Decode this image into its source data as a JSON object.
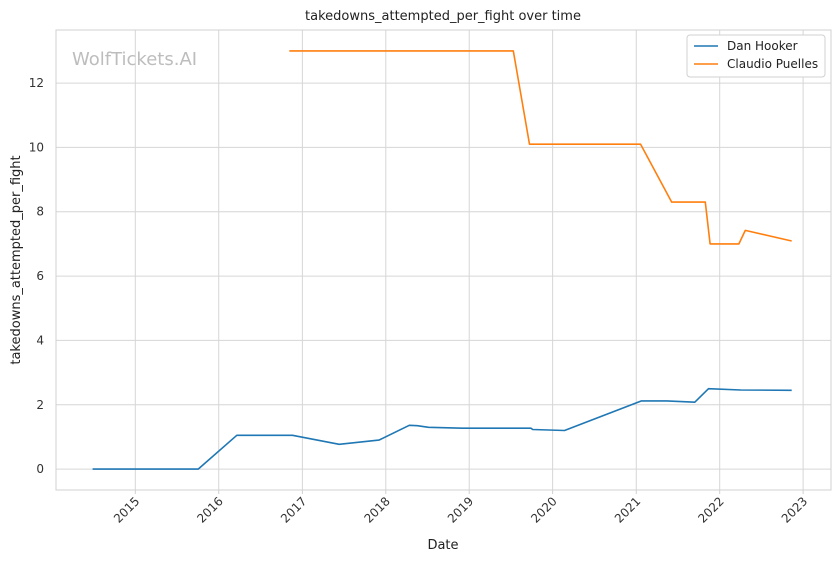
{
  "chart_data": {
    "type": "line",
    "title": "takedowns_attempted_per_fight over time",
    "xlabel": "Date",
    "ylabel": "takedowns_attempted_per_fight",
    "watermark": "WolfTickets.AI",
    "grid": true,
    "legend_position": "top-right",
    "xlim": [
      "2014-01-19",
      "2023-05-03"
    ],
    "ylim": [
      -0.65,
      13.65
    ],
    "x_ticks": [
      "2015",
      "2016",
      "2017",
      "2018",
      "2019",
      "2020",
      "2021",
      "2022",
      "2023"
    ],
    "y_ticks": [
      "0",
      "2",
      "4",
      "6",
      "8",
      "10",
      "12"
    ],
    "series": [
      {
        "name": "Dan Hooker",
        "color": "#1f77b4",
        "points": [
          [
            "2014-06-28",
            0.0
          ],
          [
            "2015-10-03",
            0.0
          ],
          [
            "2016-03-20",
            1.05
          ],
          [
            "2016-11-19",
            1.05
          ],
          [
            "2017-06-11",
            0.77
          ],
          [
            "2017-12-02",
            0.9
          ],
          [
            "2018-04-14",
            1.36
          ],
          [
            "2018-05-19",
            1.35
          ],
          [
            "2018-07-07",
            1.3
          ],
          [
            "2018-12-02",
            1.27
          ],
          [
            "2019-09-28",
            1.27
          ],
          [
            "2019-10-06",
            1.23
          ],
          [
            "2020-02-22",
            1.2
          ],
          [
            "2021-01-24",
            2.12
          ],
          [
            "2021-05-15",
            2.12
          ],
          [
            "2021-09-14",
            2.08
          ],
          [
            "2021-11-13",
            2.5
          ],
          [
            "2022-04-03",
            2.46
          ],
          [
            "2022-11-12",
            2.45
          ]
        ]
      },
      {
        "name": "Claudio Puelles",
        "color": "#ff7f0e",
        "points": [
          [
            "2016-11-05",
            13.0
          ],
          [
            "2019-07-13",
            13.0
          ],
          [
            "2019-09-22",
            10.1
          ],
          [
            "2021-01-20",
            10.1
          ],
          [
            "2021-06-05",
            8.3
          ],
          [
            "2021-10-30",
            8.3
          ],
          [
            "2021-11-20",
            7.0
          ],
          [
            "2022-03-26",
            7.0
          ],
          [
            "2022-04-23",
            7.42
          ],
          [
            "2022-11-12",
            7.09
          ]
        ]
      }
    ]
  }
}
